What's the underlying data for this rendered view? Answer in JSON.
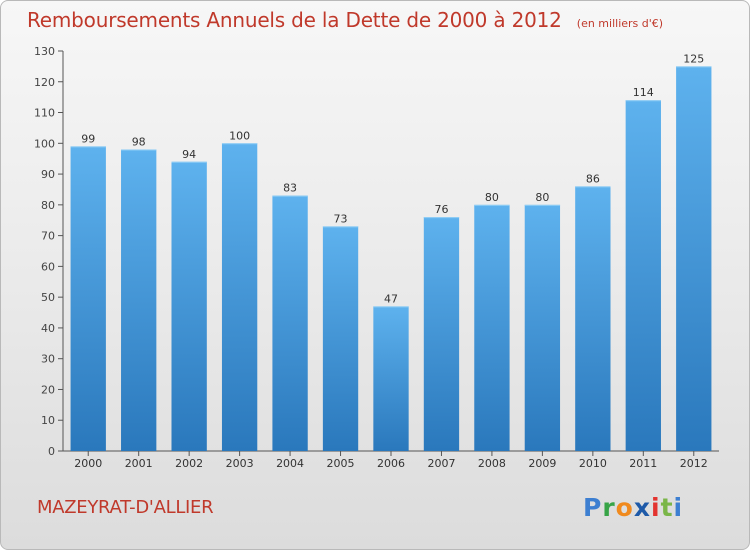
{
  "title": "Remboursements Annuels de la Dette de 2000 à 2012",
  "unit": "(en milliers d'€)",
  "place": "MAZEYRAT-D'ALLIER",
  "logo": {
    "p": "P",
    "r": "r",
    "o": "o",
    "x": "x",
    "i1": "i",
    "t": "t",
    "i2": "i"
  },
  "colors": {
    "title": "#c0392b",
    "bar_top": "#5aaeea",
    "bar_bottom": "#2b7cc0",
    "axis": "#555555"
  },
  "chart_data": {
    "type": "bar",
    "title": "Remboursements Annuels de la Dette de 2000 à 2012",
    "subtitle": "(en milliers d'€)",
    "categories": [
      "2000",
      "2001",
      "2002",
      "2003",
      "2004",
      "2005",
      "2006",
      "2007",
      "2008",
      "2009",
      "2010",
      "2011",
      "2012"
    ],
    "values": [
      99,
      98,
      94,
      100,
      83,
      73,
      47,
      76,
      80,
      80,
      86,
      114,
      125
    ],
    "yticks": [
      0,
      10,
      20,
      30,
      40,
      50,
      60,
      70,
      80,
      90,
      100,
      110,
      120,
      130
    ],
    "ylim": [
      0,
      130
    ],
    "xlabel": "",
    "ylabel": "",
    "grid": false,
    "legend": "none"
  }
}
